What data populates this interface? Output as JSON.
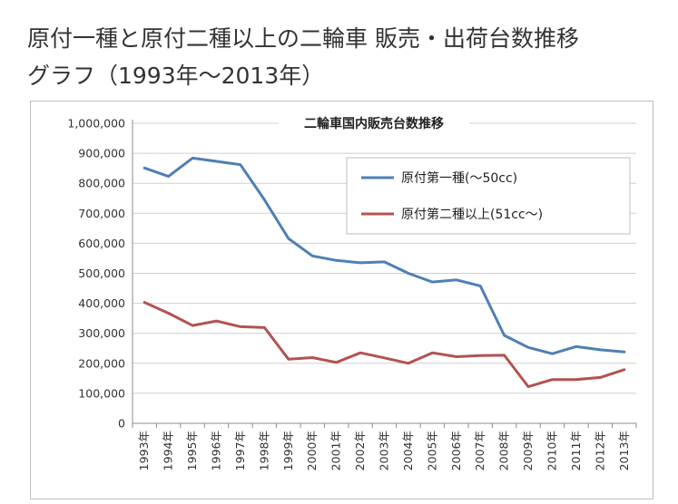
{
  "page": {
    "title_line1": "原付一種と原付二種以上の二輪車 販売・出荷台数推移",
    "title_line2": "グラフ（1993年〜2013年）"
  },
  "chart_data": {
    "type": "line",
    "title": "二輪車国内販売台数推移",
    "xlabel": "",
    "ylabel": "",
    "categories": [
      "1993年",
      "1994年",
      "1995年",
      "1996年",
      "1997年",
      "1998年",
      "1999年",
      "2000年",
      "2001年",
      "2002年",
      "2003年",
      "2004年",
      "2005年",
      "2006年",
      "2007年",
      "2008年",
      "2009年",
      "2010年",
      "2011年",
      "2012年",
      "2013年"
    ],
    "ylim": [
      0,
      1000000
    ],
    "yticks": [
      "0",
      "100,000",
      "200,000",
      "300,000",
      "400,000",
      "500,000",
      "600,000",
      "700,000",
      "800,000",
      "900,000",
      "1,000,000"
    ],
    "grid": true,
    "legend_position": "top-right",
    "series": [
      {
        "name": "原付第一種(〜50cc)",
        "color": "#4f7fb5",
        "values": [
          851000,
          823000,
          884000,
          873000,
          862000,
          745000,
          616000,
          558000,
          543000,
          535000,
          538000,
          500000,
          471000,
          478000,
          458000,
          293000,
          253000,
          232000,
          256000,
          245000,
          238000
        ]
      },
      {
        "name": "原付第二種以上(51cc〜)",
        "color": "#b25350",
        "values": [
          403000,
          367000,
          326000,
          341000,
          322000,
          319000,
          214000,
          219000,
          203000,
          235000,
          218000,
          200000,
          235000,
          222000,
          226000,
          227000,
          122000,
          146000,
          146000,
          153000,
          179000
        ]
      }
    ]
  }
}
